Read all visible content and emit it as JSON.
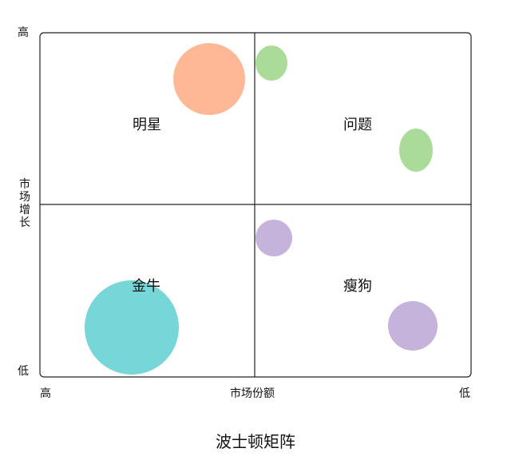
{
  "diagram": {
    "title": "波士顿矩阵",
    "x_axis": {
      "label": "市场份额",
      "left_end": "高",
      "right_end": "低"
    },
    "y_axis": {
      "label": "市场增长",
      "top_end": "高",
      "bottom_end": "低"
    },
    "quadrants": {
      "top_left": "明星",
      "top_right": "问题",
      "bottom_left": "金牛",
      "bottom_right": "瘦狗"
    },
    "colors": {
      "border": "#222222",
      "star": "#FFB896",
      "question": "#ABDB98",
      "cash_cow": "#76D6D8",
      "dog": "#C6B3DB"
    }
  }
}
